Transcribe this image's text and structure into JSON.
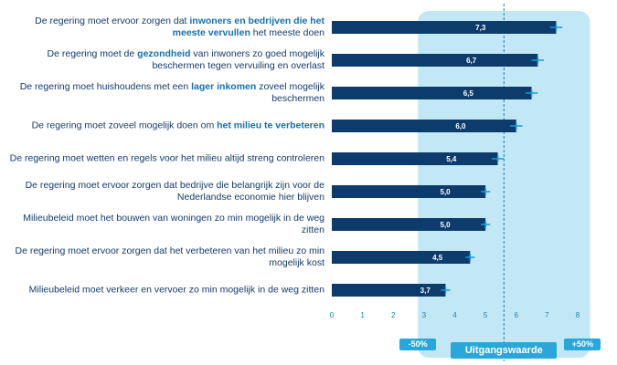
{
  "chart_data": {
    "type": "bar",
    "orientation": "horizontal",
    "categories": [
      [
        "De regering moet ervoor zorgen dat ",
        "inwoners en bedrijven die het meeste vervullen",
        " het meeste doen"
      ],
      [
        "De regering moet de ",
        "gezondheid",
        " van inwoners zo goed mogelijk beschermen tegen vervuiling en overlast"
      ],
      [
        "De regering moet huishoudens met een ",
        "lager inkomen",
        " zoveel mogelijk beschermen"
      ],
      [
        "De regering moet zoveel mogelijk doen om ",
        "het milieu te verbeteren"
      ],
      [
        "De regering moet wetten en regels voor het milieu altijd streng controleren"
      ],
      [
        "De regering moet ervoor zorgen dat bedrijve die belangrijk zijn voor de Nederlandse economie hier blijven"
      ],
      [
        "Milieubeleid moet het bouwen van woningen zo min mogelijk in de weg zitten"
      ],
      [
        "De regering moet ervoor zorgen dat het verbeteren van het milieu zo min mogelijk kost"
      ],
      [
        "Milieubeleid moet verkeer en vervoer zo min mogelijk in de weg zitten"
      ]
    ],
    "values": [
      7.3,
      6.7,
      6.5,
      6.0,
      5.4,
      5.0,
      5.0,
      4.5,
      3.7
    ],
    "value_labels": [
      "7,3",
      "6,7",
      "6,5",
      "6,0",
      "5,4",
      "5,0",
      "5,0",
      "4,5",
      "3,7"
    ],
    "errors": [
      0.2,
      0.2,
      0.2,
      0.2,
      0.2,
      0.15,
      0.15,
      0.15,
      0.15
    ],
    "color": "#0d3b6b",
    "error_color": "#1a9ad6",
    "xlim": [
      0,
      8
    ],
    "xticks": [
      0,
      1,
      2,
      3,
      4,
      5,
      6,
      7,
      8
    ],
    "reference": {
      "value": 5.6,
      "label": "Uitgangswaarde"
    },
    "band": {
      "from": 2.8,
      "to": 8.4,
      "from_label": "-50%",
      "to_label": "+50%",
      "color": "#c2e8f5"
    }
  }
}
